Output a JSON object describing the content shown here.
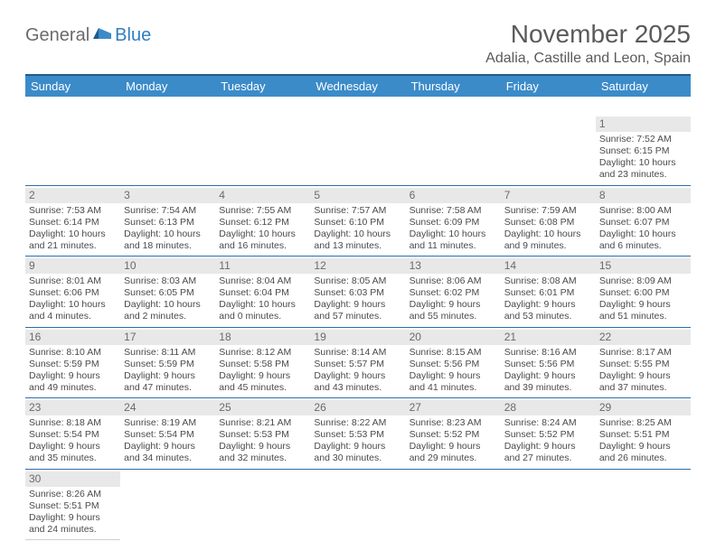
{
  "logo": {
    "part1": "General",
    "part2": "Blue"
  },
  "title": "November 2025",
  "location": "Adalia, Castille and Leon, Spain",
  "colors": {
    "header_bg": "#3b8bc9",
    "header_border": "#1f5c8b",
    "row_border": "#2f6ea8",
    "daynum_bg": "#e8e8e8",
    "text": "#4a4a4a",
    "logo_gray": "#6b6b6b",
    "logo_blue": "#2f7ec0"
  },
  "calendar": {
    "type": "table",
    "columns": [
      "Sunday",
      "Monday",
      "Tuesday",
      "Wednesday",
      "Thursday",
      "Friday",
      "Saturday"
    ],
    "weeks": [
      [
        null,
        null,
        null,
        null,
        null,
        null,
        {
          "d": "1",
          "sr": "Sunrise: 7:52 AM",
          "ss": "Sunset: 6:15 PM",
          "dl1": "Daylight: 10 hours",
          "dl2": "and 23 minutes."
        }
      ],
      [
        {
          "d": "2",
          "sr": "Sunrise: 7:53 AM",
          "ss": "Sunset: 6:14 PM",
          "dl1": "Daylight: 10 hours",
          "dl2": "and 21 minutes."
        },
        {
          "d": "3",
          "sr": "Sunrise: 7:54 AM",
          "ss": "Sunset: 6:13 PM",
          "dl1": "Daylight: 10 hours",
          "dl2": "and 18 minutes."
        },
        {
          "d": "4",
          "sr": "Sunrise: 7:55 AM",
          "ss": "Sunset: 6:12 PM",
          "dl1": "Daylight: 10 hours",
          "dl2": "and 16 minutes."
        },
        {
          "d": "5",
          "sr": "Sunrise: 7:57 AM",
          "ss": "Sunset: 6:10 PM",
          "dl1": "Daylight: 10 hours",
          "dl2": "and 13 minutes."
        },
        {
          "d": "6",
          "sr": "Sunrise: 7:58 AM",
          "ss": "Sunset: 6:09 PM",
          "dl1": "Daylight: 10 hours",
          "dl2": "and 11 minutes."
        },
        {
          "d": "7",
          "sr": "Sunrise: 7:59 AM",
          "ss": "Sunset: 6:08 PM",
          "dl1": "Daylight: 10 hours",
          "dl2": "and 9 minutes."
        },
        {
          "d": "8",
          "sr": "Sunrise: 8:00 AM",
          "ss": "Sunset: 6:07 PM",
          "dl1": "Daylight: 10 hours",
          "dl2": "and 6 minutes."
        }
      ],
      [
        {
          "d": "9",
          "sr": "Sunrise: 8:01 AM",
          "ss": "Sunset: 6:06 PM",
          "dl1": "Daylight: 10 hours",
          "dl2": "and 4 minutes."
        },
        {
          "d": "10",
          "sr": "Sunrise: 8:03 AM",
          "ss": "Sunset: 6:05 PM",
          "dl1": "Daylight: 10 hours",
          "dl2": "and 2 minutes."
        },
        {
          "d": "11",
          "sr": "Sunrise: 8:04 AM",
          "ss": "Sunset: 6:04 PM",
          "dl1": "Daylight: 10 hours",
          "dl2": "and 0 minutes."
        },
        {
          "d": "12",
          "sr": "Sunrise: 8:05 AM",
          "ss": "Sunset: 6:03 PM",
          "dl1": "Daylight: 9 hours",
          "dl2": "and 57 minutes."
        },
        {
          "d": "13",
          "sr": "Sunrise: 8:06 AM",
          "ss": "Sunset: 6:02 PM",
          "dl1": "Daylight: 9 hours",
          "dl2": "and 55 minutes."
        },
        {
          "d": "14",
          "sr": "Sunrise: 8:08 AM",
          "ss": "Sunset: 6:01 PM",
          "dl1": "Daylight: 9 hours",
          "dl2": "and 53 minutes."
        },
        {
          "d": "15",
          "sr": "Sunrise: 8:09 AM",
          "ss": "Sunset: 6:00 PM",
          "dl1": "Daylight: 9 hours",
          "dl2": "and 51 minutes."
        }
      ],
      [
        {
          "d": "16",
          "sr": "Sunrise: 8:10 AM",
          "ss": "Sunset: 5:59 PM",
          "dl1": "Daylight: 9 hours",
          "dl2": "and 49 minutes."
        },
        {
          "d": "17",
          "sr": "Sunrise: 8:11 AM",
          "ss": "Sunset: 5:59 PM",
          "dl1": "Daylight: 9 hours",
          "dl2": "and 47 minutes."
        },
        {
          "d": "18",
          "sr": "Sunrise: 8:12 AM",
          "ss": "Sunset: 5:58 PM",
          "dl1": "Daylight: 9 hours",
          "dl2": "and 45 minutes."
        },
        {
          "d": "19",
          "sr": "Sunrise: 8:14 AM",
          "ss": "Sunset: 5:57 PM",
          "dl1": "Daylight: 9 hours",
          "dl2": "and 43 minutes."
        },
        {
          "d": "20",
          "sr": "Sunrise: 8:15 AM",
          "ss": "Sunset: 5:56 PM",
          "dl1": "Daylight: 9 hours",
          "dl2": "and 41 minutes."
        },
        {
          "d": "21",
          "sr": "Sunrise: 8:16 AM",
          "ss": "Sunset: 5:56 PM",
          "dl1": "Daylight: 9 hours",
          "dl2": "and 39 minutes."
        },
        {
          "d": "22",
          "sr": "Sunrise: 8:17 AM",
          "ss": "Sunset: 5:55 PM",
          "dl1": "Daylight: 9 hours",
          "dl2": "and 37 minutes."
        }
      ],
      [
        {
          "d": "23",
          "sr": "Sunrise: 8:18 AM",
          "ss": "Sunset: 5:54 PM",
          "dl1": "Daylight: 9 hours",
          "dl2": "and 35 minutes."
        },
        {
          "d": "24",
          "sr": "Sunrise: 8:19 AM",
          "ss": "Sunset: 5:54 PM",
          "dl1": "Daylight: 9 hours",
          "dl2": "and 34 minutes."
        },
        {
          "d": "25",
          "sr": "Sunrise: 8:21 AM",
          "ss": "Sunset: 5:53 PM",
          "dl1": "Daylight: 9 hours",
          "dl2": "and 32 minutes."
        },
        {
          "d": "26",
          "sr": "Sunrise: 8:22 AM",
          "ss": "Sunset: 5:53 PM",
          "dl1": "Daylight: 9 hours",
          "dl2": "and 30 minutes."
        },
        {
          "d": "27",
          "sr": "Sunrise: 8:23 AM",
          "ss": "Sunset: 5:52 PM",
          "dl1": "Daylight: 9 hours",
          "dl2": "and 29 minutes."
        },
        {
          "d": "28",
          "sr": "Sunrise: 8:24 AM",
          "ss": "Sunset: 5:52 PM",
          "dl1": "Daylight: 9 hours",
          "dl2": "and 27 minutes."
        },
        {
          "d": "29",
          "sr": "Sunrise: 8:25 AM",
          "ss": "Sunset: 5:51 PM",
          "dl1": "Daylight: 9 hours",
          "dl2": "and 26 minutes."
        }
      ],
      [
        {
          "d": "30",
          "sr": "Sunrise: 8:26 AM",
          "ss": "Sunset: 5:51 PM",
          "dl1": "Daylight: 9 hours",
          "dl2": "and 24 minutes."
        },
        null,
        null,
        null,
        null,
        null,
        null
      ]
    ]
  }
}
